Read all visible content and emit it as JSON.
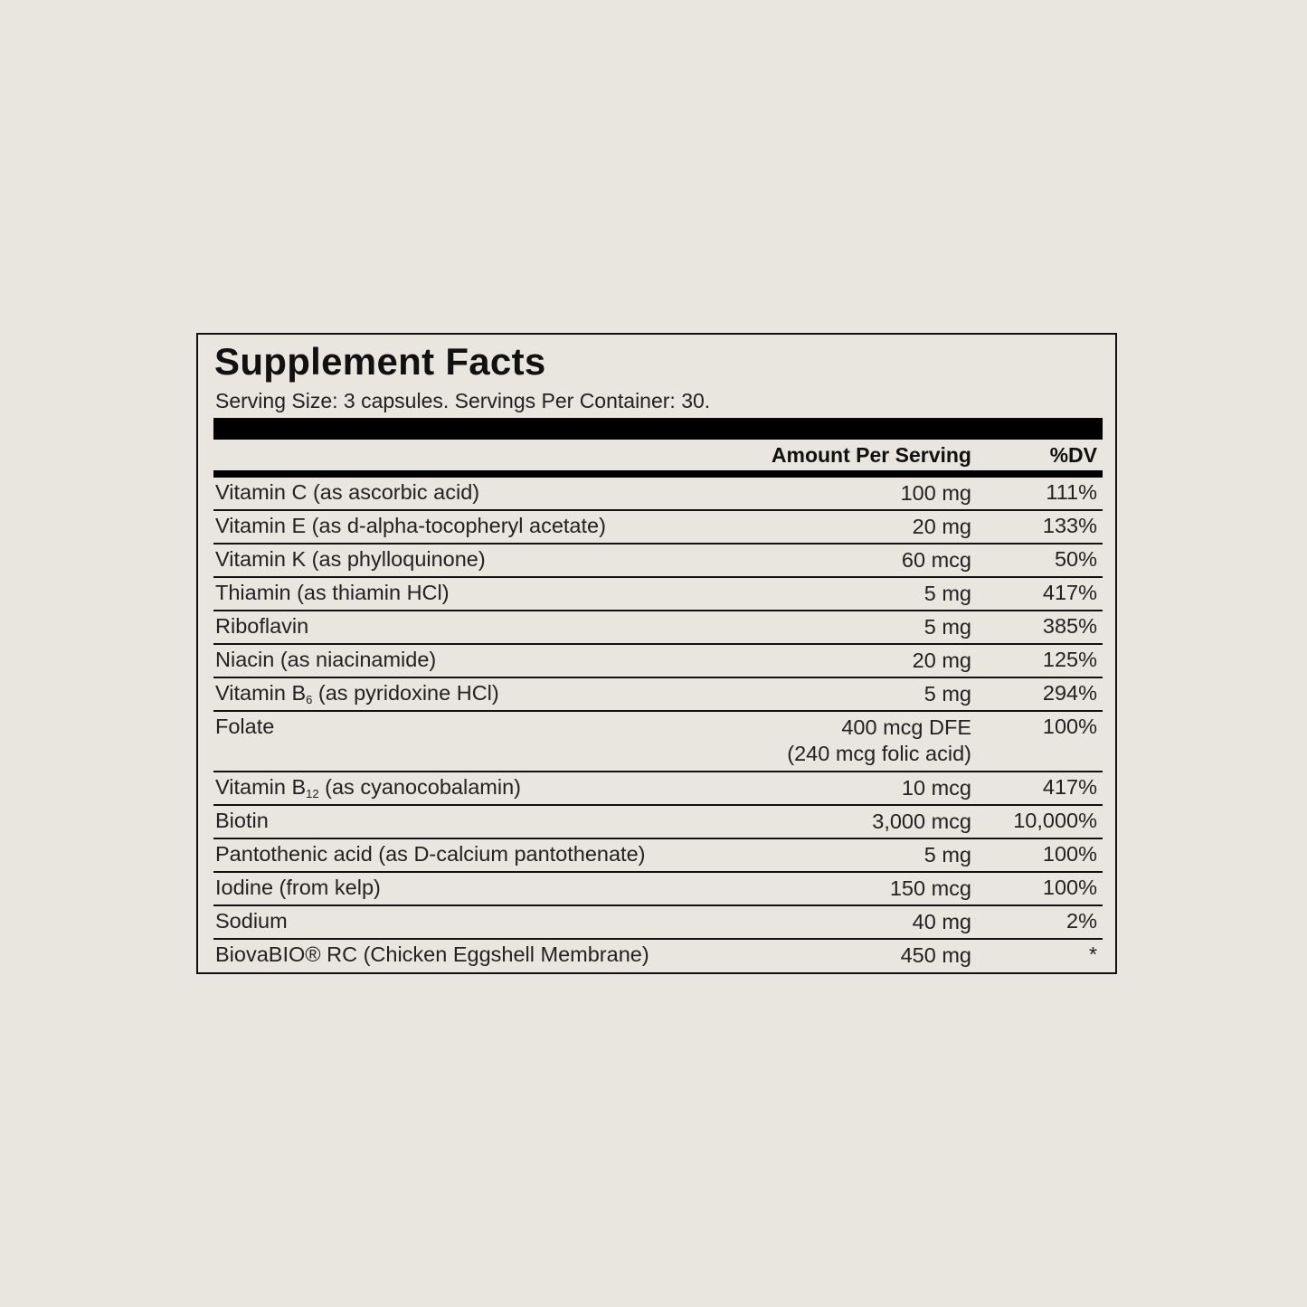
{
  "title": "Supplement Facts",
  "serving": "Serving Size: 3 capsules. Servings Per Container: 30.",
  "columns": {
    "amount": "Amount Per Serving",
    "dv": "%DV"
  },
  "rows": [
    {
      "pre": "Vitamin C (as ascorbic acid)",
      "sub": "",
      "post": "",
      "amount": "100 mg",
      "amount2": "",
      "dv": "111%"
    },
    {
      "pre": "Vitamin E (as d-alpha-tocopheryl acetate)",
      "sub": "",
      "post": "",
      "amount": "20 mg",
      "amount2": "",
      "dv": "133%"
    },
    {
      "pre": "Vitamin K (as phylloquinone)",
      "sub": "",
      "post": "",
      "amount": "60 mcg",
      "amount2": "",
      "dv": "50%"
    },
    {
      "pre": "Thiamin (as thiamin HCl)",
      "sub": "",
      "post": "",
      "amount": "5 mg",
      "amount2": "",
      "dv": "417%"
    },
    {
      "pre": "Riboflavin",
      "sub": "",
      "post": "",
      "amount": "5 mg",
      "amount2": "",
      "dv": "385%"
    },
    {
      "pre": "Niacin (as niacinamide)",
      "sub": "",
      "post": "",
      "amount": "20 mg",
      "amount2": "",
      "dv": "125%"
    },
    {
      "pre": "Vitamin B",
      "sub": "6",
      "post": " (as pyridoxine HCl)",
      "amount": "5 mg",
      "amount2": "",
      "dv": "294%"
    },
    {
      "pre": "Folate",
      "sub": "",
      "post": "",
      "amount": "400 mcg DFE",
      "amount2": "(240 mcg folic acid)",
      "dv": "100%"
    },
    {
      "pre": "Vitamin B",
      "sub": "12",
      "post": " (as cyanocobalamin)",
      "amount": "10 mcg",
      "amount2": "",
      "dv": "417%"
    },
    {
      "pre": "Biotin",
      "sub": "",
      "post": "",
      "amount": "3,000 mcg",
      "amount2": "",
      "dv": "10,000%"
    },
    {
      "pre": "Pantothenic acid (as D-calcium pantothenate)",
      "sub": "",
      "post": "",
      "amount": "5 mg",
      "amount2": "",
      "dv": "100%"
    },
    {
      "pre": "Iodine (from kelp)",
      "sub": "",
      "post": "",
      "amount": "150 mcg",
      "amount2": "",
      "dv": "100%"
    },
    {
      "pre": "Sodium",
      "sub": "",
      "post": "",
      "amount": "40 mg",
      "amount2": "",
      "dv": "2%"
    },
    {
      "pre": "BiovaBIO® RC (Chicken Eggshell Membrane)",
      "sub": "",
      "post": "",
      "amount": "450 mg",
      "amount2": "",
      "dv": "*"
    }
  ]
}
